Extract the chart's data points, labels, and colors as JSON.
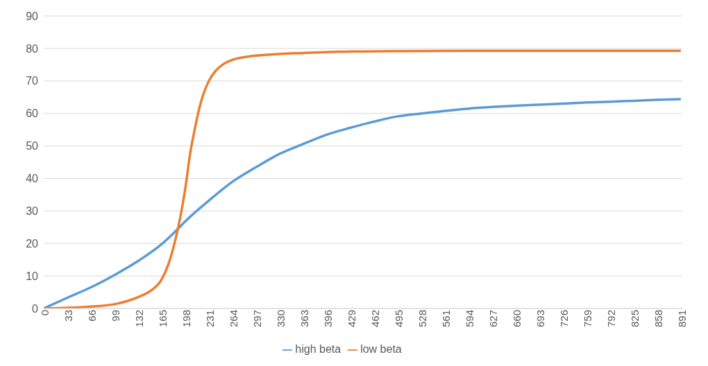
{
  "chart_data": {
    "type": "line",
    "xlim": [
      0,
      893
    ],
    "xticks": [
      0,
      33,
      66,
      99,
      132,
      165,
      198,
      231,
      264,
      297,
      330,
      363,
      396,
      429,
      462,
      495,
      528,
      561,
      594,
      627,
      660,
      693,
      726,
      759,
      792,
      825,
      858,
      891
    ],
    "ylim": [
      0,
      90
    ],
    "yticks": [
      0,
      10,
      20,
      30,
      40,
      50,
      60,
      70,
      80,
      90
    ],
    "grid": "y",
    "legend": "bottom",
    "marker": "none",
    "line_style": "solid",
    "series": [
      {
        "name": "high beta",
        "color": "#5b9bd5",
        "x": [
          0,
          33,
          66,
          99,
          132,
          165,
          190,
          198,
          231,
          264,
          297,
          330,
          363,
          396,
          429,
          462,
          495,
          528,
          561,
          594,
          627,
          660,
          693,
          726,
          759,
          792,
          825,
          858,
          891
        ],
        "values": [
          0,
          3.3,
          6.5,
          10.3,
          14.6,
          19.8,
          25,
          26.8,
          33.2,
          39,
          43.5,
          47.6,
          50.6,
          53.5,
          55.6,
          57.5,
          59.1,
          60,
          60.8,
          61.5,
          62,
          62.4,
          62.7,
          63,
          63.4,
          63.6,
          63.9,
          64.2,
          64.4
        ]
      },
      {
        "name": "low beta",
        "color": "#ed7d31",
        "x": [
          0,
          33,
          66,
          99,
          120,
          132,
          150,
          165,
          175,
          185,
          190,
          198,
          205,
          212,
          218,
          225,
          231,
          240,
          250,
          264,
          280,
          297,
          330,
          363,
          400,
          495,
          600,
          891
        ],
        "values": [
          0,
          0.2,
          0.6,
          1.3,
          2.5,
          3.5,
          5.5,
          9,
          14,
          22,
          27,
          37,
          48,
          56,
          62,
          67,
          70,
          73,
          75,
          76.5,
          77.3,
          77.8,
          78.3,
          78.6,
          78.9,
          79.2,
          79.3,
          79.3
        ]
      }
    ]
  }
}
